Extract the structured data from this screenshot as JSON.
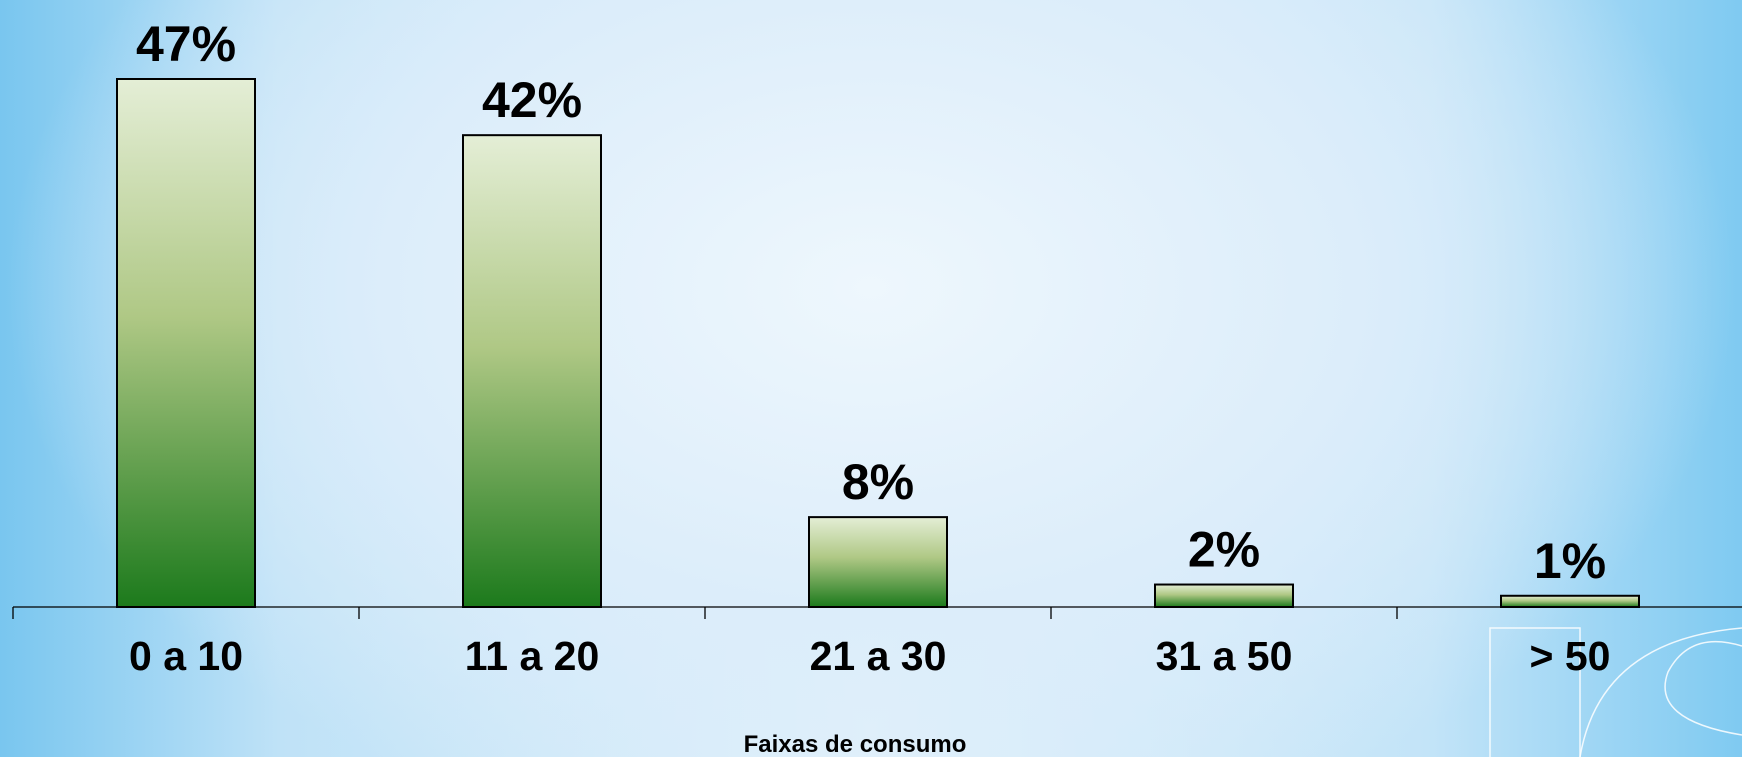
{
  "chart_data": {
    "type": "bar",
    "categories": [
      "0 a 10",
      "11 a 20",
      "21 a 30",
      "31 a 50",
      "> 50"
    ],
    "values": [
      47,
      42,
      8,
      2,
      1
    ],
    "value_labels": [
      "47%",
      "42%",
      "8%",
      "2%",
      "1%"
    ],
    "xlabel": "Faixas de consumo",
    "ylabel": "",
    "ylim": [
      0,
      47
    ],
    "grid": false,
    "legend": "none",
    "bar_color_top": "#e4eed6",
    "bar_color_mid": "#afc885",
    "bar_color_bottom": "#1c7a1c"
  }
}
